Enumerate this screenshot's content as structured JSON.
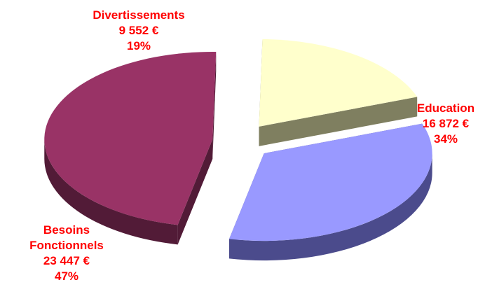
{
  "chart_data": {
    "type": "pie",
    "slices": [
      {
        "category": "Divertissements",
        "value": 9552,
        "value_label": "9 552 €",
        "percent": 19,
        "percent_label": "19%",
        "color": "#FFFFCC",
        "side_color": "#7F7F60"
      },
      {
        "category": "Education",
        "value": 16872,
        "value_label": "16 872 €",
        "percent": 34,
        "percent_label": "34%",
        "color": "#9999FF",
        "side_color": "#4B4B8C"
      },
      {
        "category": "Besoins Fonctionnels",
        "category_lines": [
          "Besoins",
          "Fonctionnels"
        ],
        "value": 23447,
        "value_label": "23 447 €",
        "percent": 47,
        "percent_label": "47%",
        "color": "#993366",
        "side_color": "#521B37"
      }
    ],
    "exploded": true,
    "three_d": true,
    "label_color": "#FF0000",
    "title": "",
    "legend": "none"
  }
}
